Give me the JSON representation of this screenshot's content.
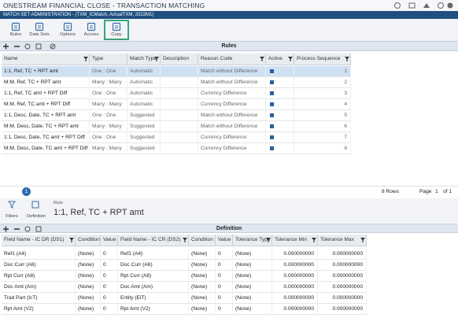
{
  "header": {
    "title": "ONESTREAM FINANCIAL CLOSE - TRANSACTION MATCHING",
    "subtitle": "MATCH SET ADMINISTRATION - (TXM_ICMatch, ActualTXM, 2022M1)"
  },
  "toolbar": [
    "Rules",
    "Data Sets",
    "Options",
    "Access",
    "Copy"
  ],
  "rules": {
    "title": "Rules",
    "columns": [
      "Name",
      "Type",
      "Match Type",
      "Description",
      "Reason Code",
      "Active",
      "Process Sequence"
    ],
    "rows": [
      {
        "name": "1:1, Ref, TC + RPT amt",
        "type": "One : One",
        "match_type": "Automatic",
        "reason_code": "Match without Difference",
        "process_sequence": "1"
      },
      {
        "name": "M:M, Ref, TC  + RPT amt",
        "type": "Many : Many",
        "match_type": "Automatic",
        "reason_code": "Match without Difference",
        "process_sequence": "2"
      },
      {
        "name": "1:1, Ref, TC amt + RPT Diff",
        "type": "One : One",
        "match_type": "Automatic",
        "reason_code": "Currency Difference",
        "process_sequence": "3"
      },
      {
        "name": "M:M, Ref, TC amt + RPT Diff",
        "type": "Many : Many",
        "match_type": "Automatic",
        "reason_code": "Currency Difference",
        "process_sequence": "4"
      },
      {
        "name": "1:1, Desc, Date, TC + RPT amt",
        "type": "One : One",
        "match_type": "Suggested",
        "reason_code": "Match without Difference",
        "process_sequence": "5"
      },
      {
        "name": "M:M, Desc, Date, TC + RPT amt",
        "type": "Many : Many",
        "match_type": "Suggested",
        "reason_code": "Match without Difference",
        "process_sequence": "6"
      },
      {
        "name": "1:1, Desc, Date, TC amt + RPT Diff",
        "type": "One : One",
        "match_type": "Suggested",
        "reason_code": "Currency Difference",
        "process_sequence": "7"
      },
      {
        "name": "M:M, Desc, Date, TC amt + RPT Diff",
        "type": "Many : Many",
        "match_type": "Suggested",
        "reason_code": "Currency Difference",
        "process_sequence": "8"
      }
    ],
    "pager": {
      "current": "1",
      "rows_label": "8 Rows",
      "page_label": "Page",
      "page": "1",
      "of": "of 1"
    }
  },
  "detail": {
    "filters": "Filters",
    "definition_button": "Definition",
    "label": "Rule",
    "rule_name": "1:1, Ref, TC + RPT amt"
  },
  "definition": {
    "title": "Definition",
    "columns": [
      "Field Name - IC DR (DS1)",
      "Condition",
      "Value",
      "Field Name - IC CR (DS2)",
      "Condition",
      "Value",
      "Tolerance Type",
      "Tolerance Min",
      "Tolerance Max"
    ],
    "rows": [
      [
        "Ref1 (A4)",
        "(None)",
        "0",
        "Ref1 (A4)",
        "(None)",
        "0",
        "(None)",
        "0.000000000",
        "0.000000000"
      ],
      [
        "Doc Curr (A6)",
        "(None)",
        "0",
        "Doc Curr (A6)",
        "(None)",
        "0",
        "(None)",
        "0.000000000",
        "0.000000000"
      ],
      [
        "Rpt Curr (A8)",
        "(None)",
        "0",
        "Rpt Curr (A8)",
        "(None)",
        "0",
        "(None)",
        "0.000000000",
        "0.000000000"
      ],
      [
        "Doc Amt (Am)",
        "(None)",
        "0",
        "Doc Amt (Am)",
        "(None)",
        "0",
        "(None)",
        "0.000000000",
        "0.000000000"
      ],
      [
        "Trad Part (IcT)",
        "(None)",
        "0",
        "Entity (EiT)",
        "(None)",
        "0",
        "(None)",
        "0.000000000",
        "0.000000000"
      ],
      [
        "Rpt Amt (V2)",
        "(None)",
        "0",
        "Rpt Amt (V2)",
        "(None)",
        "0",
        "(None)",
        "0.000000000",
        "0.000000000"
      ]
    ]
  }
}
